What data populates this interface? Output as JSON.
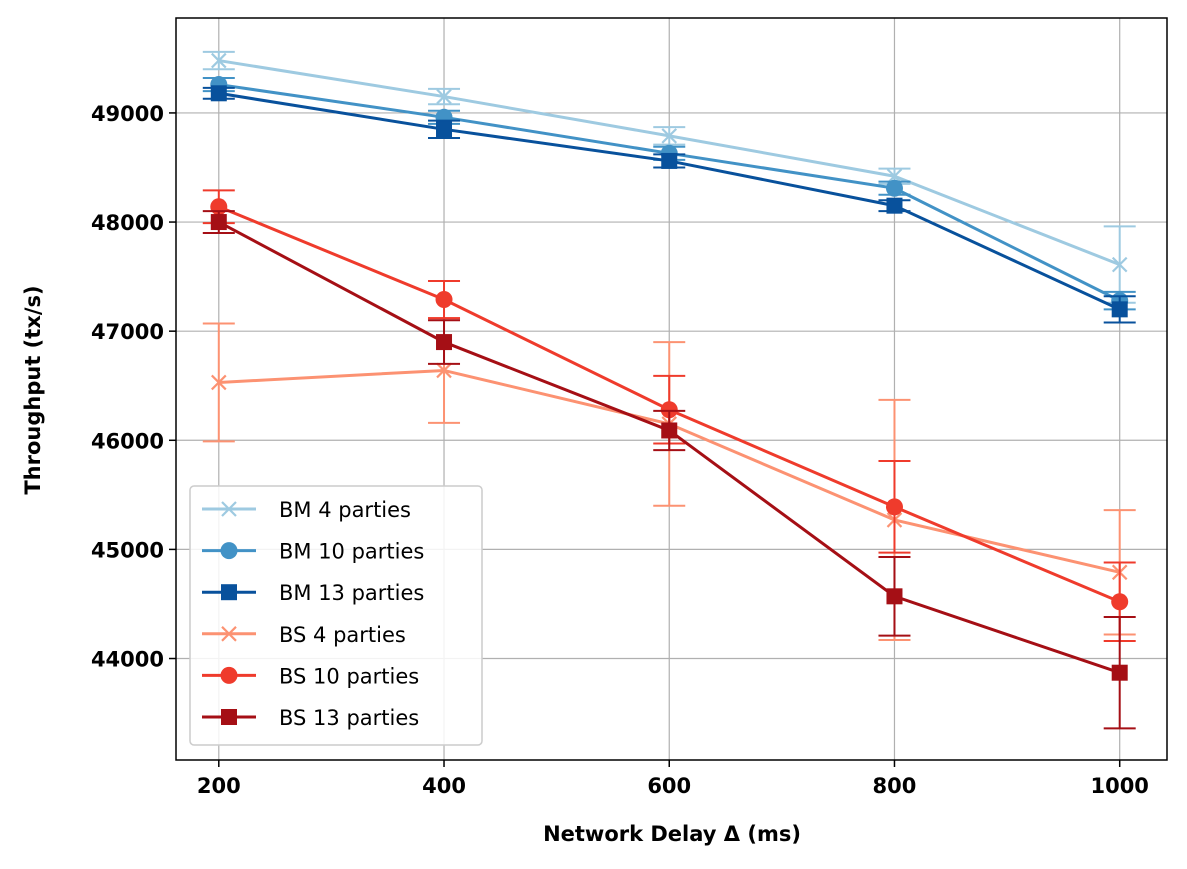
{
  "chart_data": {
    "type": "line",
    "title": "",
    "xlabel": "Network Delay Δ (ms)",
    "ylabel": "Throughput (tx/s)",
    "x": [
      200,
      400,
      600,
      800,
      1000
    ],
    "xlim": [
      162,
      1042
    ],
    "ylim": [
      43070,
      49870
    ],
    "xticks": [
      "200",
      "400",
      "600",
      "800",
      "1000"
    ],
    "yticks": [
      "44000",
      "45000",
      "46000",
      "47000",
      "48000",
      "49000"
    ],
    "grid": true,
    "legend_position": "lower-left",
    "series": [
      {
        "name": "BM 4 parties",
        "color": "#9ecae1",
        "marker": "x",
        "values": [
          49480,
          49150,
          48790,
          48420,
          47610
        ],
        "errors": [
          80,
          70,
          80,
          70,
          350
        ]
      },
      {
        "name": "BM 10 parties",
        "color": "#4292c6",
        "marker": "circle",
        "values": [
          49260,
          48960,
          48630,
          48310,
          47280
        ],
        "errors": [
          60,
          60,
          60,
          60,
          80
        ]
      },
      {
        "name": "BM 13 parties",
        "color": "#08519c",
        "marker": "square",
        "values": [
          49180,
          48850,
          48560,
          48150,
          47200
        ],
        "errors": [
          50,
          80,
          60,
          50,
          120
        ]
      },
      {
        "name": "BS 4 parties",
        "color": "#fc9272",
        "marker": "x",
        "values": [
          46530,
          46640,
          46150,
          45270,
          44790
        ],
        "errors": [
          540,
          480,
          750,
          1100,
          570
        ]
      },
      {
        "name": "BS 10 parties",
        "color": "#ef3b2c",
        "marker": "circle",
        "values": [
          48140,
          47290,
          46280,
          45390,
          44520
        ],
        "errors": [
          150,
          170,
          310,
          420,
          360
        ]
      },
      {
        "name": "BS 13 parties",
        "color": "#a50f15",
        "marker": "square",
        "values": [
          48000,
          46900,
          46090,
          44570,
          43870
        ],
        "errors": [
          100,
          200,
          180,
          360,
          510
        ]
      }
    ]
  }
}
